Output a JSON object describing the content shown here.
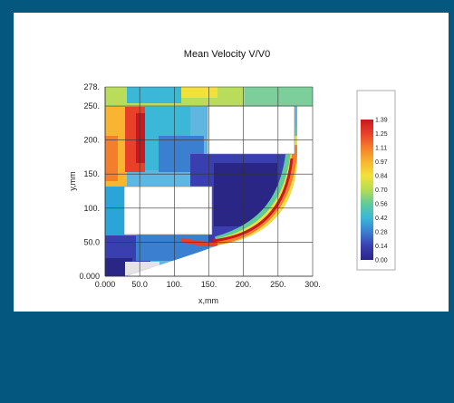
{
  "chart_data": {
    "type": "heatmap",
    "title": "Mean Velocity V/V0",
    "xlabel": "x,mm",
    "ylabel": "y,mm",
    "xlim": [
      0,
      300
    ],
    "ylim": [
      0,
      278
    ],
    "x_ticks": [
      "0.000",
      "50.0",
      "100.",
      "150.",
      "200.",
      "250.",
      "300."
    ],
    "x_tick_values": [
      0,
      50,
      100,
      150,
      200,
      250,
      300
    ],
    "y_ticks": [
      "0.000",
      "50.0",
      "100.",
      "150.",
      "200.",
      "250.",
      "278."
    ],
    "y_tick_values": [
      0,
      50,
      100,
      150,
      200,
      250,
      278
    ],
    "grid": true,
    "colorbar": {
      "labels": [
        "1.39",
        "1.25",
        "1.11",
        "0.97",
        "0.84",
        "0.70",
        "0.56",
        "0.42",
        "0.28",
        "0.14",
        "0.00"
      ],
      "min": 0.0,
      "max": 1.39,
      "colors": [
        "#c8191e",
        "#e8412a",
        "#f57e2c",
        "#f7b531",
        "#f2e13a",
        "#b5dc55",
        "#5fcb9a",
        "#3bb7d8",
        "#3a7fd0",
        "#3a3fb0",
        "#2a2686"
      ]
    }
  }
}
